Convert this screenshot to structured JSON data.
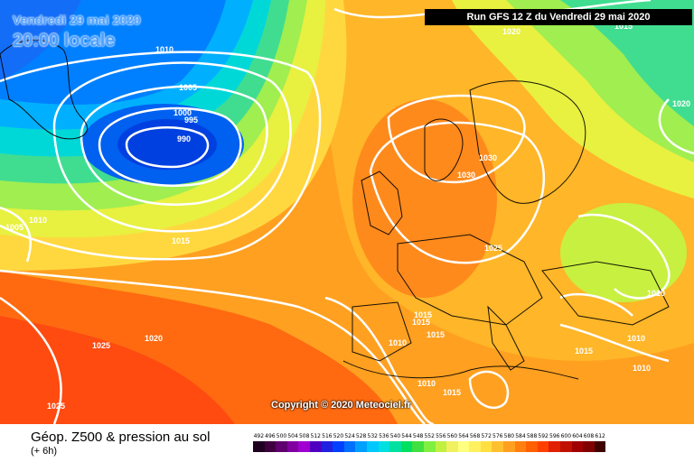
{
  "header": {
    "date": "Vendredi 29 mai 2020",
    "time": "20:00 locale",
    "run": "Run GFS 12 Z du Vendredi 29 mai 2020"
  },
  "copyright": "Copyright © 2020 Meteociel.fr",
  "footer": {
    "title": "Géop. Z500 & pression au sol",
    "subtitle": "(+ 6h)"
  },
  "isobar_labels": [
    "1010",
    "1005",
    "1000",
    "995",
    "990",
    "1020",
    "1015",
    "1020",
    "1010",
    "1005",
    "1015",
    "1030",
    "1030",
    "1025",
    "1010",
    "1015",
    "1015",
    "1020",
    "1025",
    "1025",
    "1010",
    "1015",
    "1015",
    "1010",
    "1010",
    "1010",
    "1015"
  ],
  "scale": {
    "labels": [
      "492",
      "496",
      "500",
      "504",
      "508",
      "512",
      "516",
      "520",
      "524",
      "528",
      "532",
      "536",
      "540",
      "544",
      "548",
      "552",
      "556",
      "560",
      "564",
      "568",
      "572",
      "576",
      "580",
      "584",
      "588",
      "592",
      "596",
      "600",
      "604",
      "608",
      "612"
    ],
    "colors": [
      "#200020",
      "#400040",
      "#600070",
      "#8000a0",
      "#a000d0",
      "#5000c0",
      "#2020e0",
      "#0040ff",
      "#0070ff",
      "#00a0ff",
      "#00c8ff",
      "#00e0e0",
      "#00e0a0",
      "#00e060",
      "#40e040",
      "#80f040",
      "#c0f040",
      "#f0f060",
      "#ffff80",
      "#fff060",
      "#ffe040",
      "#ffc030",
      "#ffa020",
      "#ff8010",
      "#ff6000",
      "#ff4000",
      "#e02000",
      "#c01000",
      "#a00000",
      "#800000",
      "#400000"
    ]
  }
}
